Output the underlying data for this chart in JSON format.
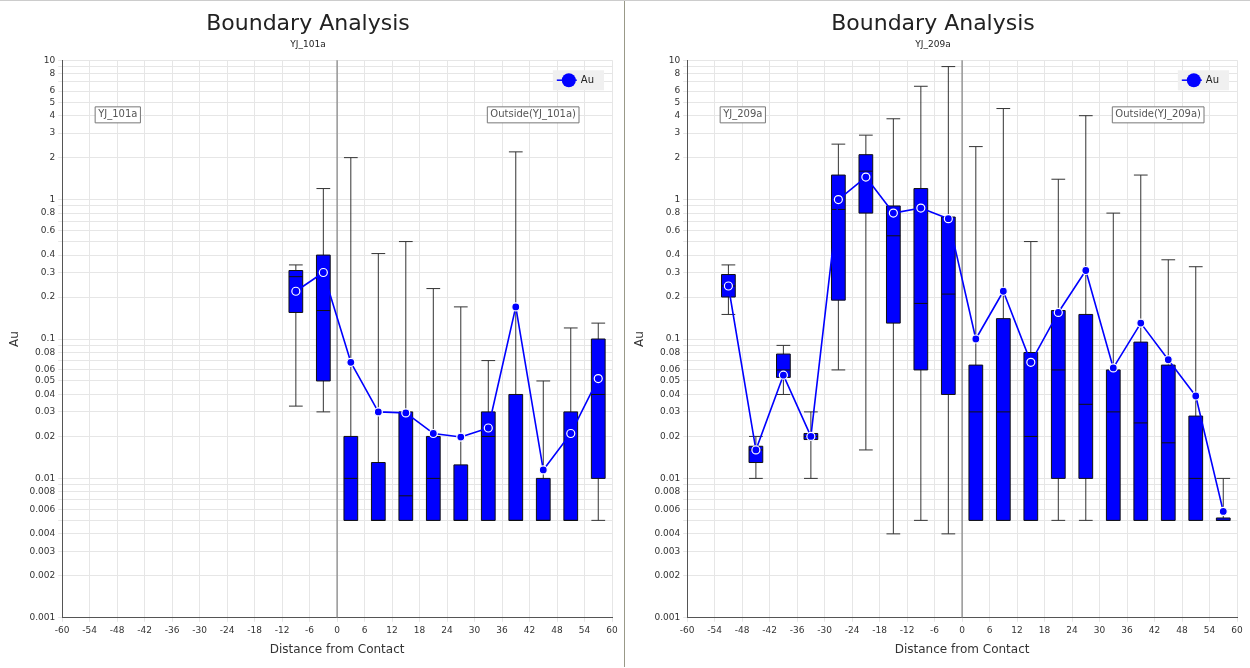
{
  "chart_data": [
    {
      "type": "box",
      "title": "Boundary Analysis",
      "subtitle": "YJ_101a",
      "xlabel": "Distance from Contact",
      "ylabel": "Au",
      "annotations": [
        "YJ_101a",
        "Outside(YJ_101a)"
      ],
      "x": [
        -9,
        -3,
        3,
        9,
        15,
        21,
        27,
        33,
        39,
        45,
        51,
        57
      ],
      "series": [
        {
          "color": "#0000ff",
          "boxes": [
            {
              "low": 0.033,
              "q1": 0.155,
              "median": 0.28,
              "q3": 0.31,
              "high": 0.34
            },
            {
              "low": 0.03,
              "q1": 0.05,
              "median": 0.16,
              "q3": 0.4,
              "high": 1.2
            },
            {
              "low": 0.005,
              "q1": 0.005,
              "median": 0.01,
              "q3": 0.02,
              "high": 2
            },
            {
              "low": 0.005,
              "q1": 0.005,
              "median": 0.005,
              "q3": 0.013,
              "high": 0.41
            },
            {
              "low": 0.005,
              "q1": 0.005,
              "median": 0.0075,
              "q3": 0.03,
              "high": 0.5
            },
            {
              "low": 0.005,
              "q1": 0.005,
              "median": 0.01,
              "q3": 0.02,
              "high": 0.23
            },
            {
              "low": 0.005,
              "q1": 0.005,
              "median": 0.005,
              "q3": 0.0125,
              "high": 0.17
            },
            {
              "low": 0.005,
              "q1": 0.005,
              "median": 0.02,
              "q3": 0.03,
              "high": 0.07
            },
            {
              "low": 0.005,
              "q1": 0.005,
              "median": 0.005,
              "q3": 0.04,
              "high": 2.2
            },
            {
              "low": 0.005,
              "q1": 0.005,
              "median": 0.005,
              "q3": 0.01,
              "high": 0.05
            },
            {
              "low": 0.005,
              "q1": 0.005,
              "median": 0.005,
              "q3": 0.03,
              "high": 0.12
            },
            {
              "low": 0.005,
              "q1": 0.01,
              "median": 0.04,
              "q3": 0.1,
              "high": 0.13
            }
          ]
        },
        {
          "type": "line",
          "name": "Au",
          "color": "#0000ff",
          "values": [
            0.22,
            0.3,
            0.068,
            0.03,
            0.0295,
            0.021,
            0.0198,
            0.023,
            0.17,
            0.0115,
            0.021,
            0.052
          ]
        }
      ],
      "ref_lines": [
        {
          "axis": "x",
          "value": 0,
          "color": "#808080"
        }
      ],
      "xlim": [
        -60,
        60
      ],
      "xticks": [
        -60,
        -54,
        -48,
        -42,
        -36,
        -30,
        -24,
        -18,
        -12,
        -6,
        0,
        6,
        12,
        18,
        24,
        30,
        36,
        42,
        48,
        54,
        60
      ],
      "ylim": [
        0.001,
        10
      ],
      "yticks": [
        0.001,
        0.002,
        0.003,
        0.004,
        {
          "value": 0.005,
          "label": null
        },
        0.006,
        {
          "value": 0.007,
          "label": null
        },
        0.008,
        {
          "value": 0.009,
          "label": null
        },
        0.01,
        0.02,
        0.03,
        0.04,
        0.05,
        0.06,
        {
          "value": 0.07,
          "label": null
        },
        0.08,
        {
          "value": 0.09,
          "label": null
        },
        0.1,
        0.2,
        0.3,
        0.4,
        {
          "value": 0.5,
          "label": null
        },
        0.6,
        {
          "value": 0.7,
          "label": null
        },
        0.8,
        {
          "value": 0.9,
          "label": null
        },
        1,
        2,
        3,
        4,
        5,
        6,
        {
          "value": 7,
          "label": null
        },
        8,
        {
          "value": 9,
          "label": null
        },
        10
      ],
      "log": "y",
      "grid": true,
      "legend": "top right",
      "marker": "circle"
    },
    {
      "type": "box",
      "title": "Boundary Analysis",
      "subtitle": "YJ_209a",
      "xlabel": "Distance from Contact",
      "ylabel": "Au",
      "annotations": [
        "YJ_209a",
        "Outside(YJ_209a)"
      ],
      "x": [
        -51,
        -45,
        -39,
        -33,
        -27,
        -21,
        -15,
        -9,
        -3,
        3,
        9,
        15,
        21,
        27,
        33,
        39,
        45,
        51,
        57
      ],
      "series": [
        {
          "color": "#0000ff",
          "boxes": [
            {
              "low": 0.15,
              "q1": 0.2,
              "median": 0.24,
              "q3": 0.29,
              "high": 0.34
            },
            {
              "low": 0.01,
              "q1": 0.013,
              "median": 0.016,
              "q3": 0.017,
              "high": 0.02
            },
            {
              "low": 0.04,
              "q1": 0.053,
              "median": 0.06,
              "q3": 0.078,
              "high": 0.09
            },
            {
              "low": 0.01,
              "q1": 0.019,
              "median": 0.02,
              "q3": 0.021,
              "high": 0.03
            },
            {
              "low": 0.06,
              "q1": 0.19,
              "median": 0.85,
              "q3": 1.5,
              "high": 2.5
            },
            {
              "low": 0.016,
              "q1": 0.8,
              "median": 1.6,
              "q3": 2.1,
              "high": 2.9
            },
            {
              "low": 0.004,
              "q1": 0.13,
              "median": 0.55,
              "q3": 0.9,
              "high": 3.8
            },
            {
              "low": 0.005,
              "q1": 0.06,
              "median": 0.18,
              "q3": 1.2,
              "high": 6.5
            },
            {
              "low": 0.004,
              "q1": 0.04,
              "median": 0.21,
              "q3": 0.75,
              "high": 9
            },
            {
              "low": 0.005,
              "q1": 0.005,
              "median": 0.03,
              "q3": 0.065,
              "high": 2.4
            },
            {
              "low": 0.005,
              "q1": 0.005,
              "median": 0.03,
              "q3": 0.14,
              "high": 4.5
            },
            {
              "low": 0.005,
              "q1": 0.005,
              "median": 0.02,
              "q3": 0.08,
              "high": 0.5
            },
            {
              "low": 0.005,
              "q1": 0.01,
              "median": 0.06,
              "q3": 0.16,
              "high": 1.4
            },
            {
              "low": 0.005,
              "q1": 0.01,
              "median": 0.034,
              "q3": 0.15,
              "high": 4
            },
            {
              "low": 0.005,
              "q1": 0.005,
              "median": 0.03,
              "q3": 0.06,
              "high": 0.8
            },
            {
              "low": 0.005,
              "q1": 0.005,
              "median": 0.025,
              "q3": 0.095,
              "high": 1.5
            },
            {
              "low": 0.005,
              "q1": 0.005,
              "median": 0.018,
              "q3": 0.065,
              "high": 0.37
            },
            {
              "low": 0.005,
              "q1": 0.005,
              "median": 0.01,
              "q3": 0.028,
              "high": 0.33
            },
            {
              "low": 0.005,
              "q1": 0.005,
              "median": 0.005,
              "q3": 0.0052,
              "high": 0.01
            }
          ]
        },
        {
          "type": "line",
          "name": "Au",
          "color": "#0000ff",
          "values": [
            0.24,
            0.016,
            0.055,
            0.02,
            1,
            1.45,
            0.8,
            0.87,
            0.73,
            0.1,
            0.22,
            0.068,
            0.155,
            0.31,
            0.062,
            0.13,
            0.071,
            0.039,
            0.0058
          ]
        }
      ],
      "ref_lines": [
        {
          "axis": "x",
          "value": 0,
          "color": "#808080"
        }
      ],
      "xlim": [
        -60,
        60
      ],
      "xticks": [
        -60,
        -54,
        -48,
        -42,
        -36,
        -30,
        -24,
        -18,
        -12,
        -6,
        0,
        6,
        12,
        18,
        24,
        30,
        36,
        42,
        48,
        54,
        60
      ],
      "ylim": [
        0.001,
        10
      ],
      "yticks": [
        0.001,
        0.002,
        0.003,
        0.004,
        {
          "value": 0.005,
          "label": null
        },
        0.006,
        {
          "value": 0.007,
          "label": null
        },
        0.008,
        {
          "value": 0.009,
          "label": null
        },
        0.01,
        0.02,
        0.03,
        0.04,
        0.05,
        0.06,
        {
          "value": 0.07,
          "label": null
        },
        0.08,
        {
          "value": 0.09,
          "label": null
        },
        0.1,
        0.2,
        0.3,
        0.4,
        {
          "value": 0.5,
          "label": null
        },
        0.6,
        {
          "value": 0.7,
          "label": null
        },
        0.8,
        {
          "value": 0.9,
          "label": null
        },
        1,
        2,
        3,
        4,
        5,
        6,
        {
          "value": 7,
          "label": null
        },
        8,
        {
          "value": 9,
          "label": null
        },
        10
      ],
      "log": "y",
      "grid": true,
      "legend": "top right",
      "marker": "circle"
    }
  ]
}
